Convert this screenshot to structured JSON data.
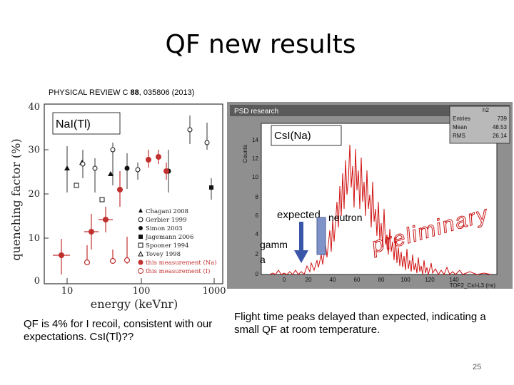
{
  "title": "QF new results",
  "citation": {
    "journal": "PHYSICAL REVIEW C",
    "volume": "88",
    "rest": ", 035806 (2013)"
  },
  "left_plot": {
    "crystal_label": "NaI(Tl)",
    "ylabel": "quenching factor (%)",
    "xlabel": "energy (keVnr)",
    "x_ticks": [
      "10",
      "100",
      "1000"
    ],
    "y_ticks": [
      "0",
      "10",
      "20",
      "30",
      "40"
    ],
    "legend": [
      "Chagani 2008",
      "Gerbier 1999",
      "Simon 2003",
      "Jagemann 2006",
      "Spooner 1994",
      "Tovey 1998",
      "this measurement (Na)",
      "this measurement (I)"
    ]
  },
  "right_plot": {
    "header": "PSD research",
    "stats_title": "h2",
    "stats": [
      {
        "name": "Entries",
        "value": "739"
      },
      {
        "name": "Mean",
        "value": "48.53"
      },
      {
        "name": "RMS",
        "value": "26.14"
      }
    ],
    "ylabel": "Counts",
    "xlabel": "TOF2_CsI-L3 (ns)",
    "y_ticks": [
      "0",
      "2",
      "4",
      "6",
      "8",
      "10",
      "12",
      "14"
    ],
    "x_ticks": [
      "0",
      "20",
      "40",
      "60",
      "80",
      "100",
      "120",
      "140"
    ],
    "crystal_label": "CsI(Na)",
    "expected_label": "expected",
    "neutron_label": "neutron",
    "gamma_label_1": "gamm",
    "gamma_label_2": "a",
    "watermark": "preliminary"
  },
  "left_text": "QF is 4% for I recoil, consistent with our expectations. CsI(Tl)??",
  "right_text": "Flight time peaks delayed than expected, indicating a small QF at room temperature.",
  "page_number": "25"
}
